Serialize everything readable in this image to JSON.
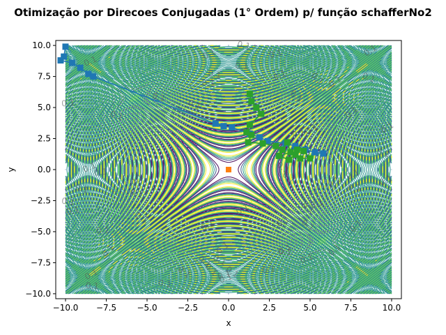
{
  "chart_data": {
    "type": "line",
    "title": "Otimização por Direcoes Conjugadas (1° Ordem) p/ função schafferNo2",
    "xlabel": "x",
    "ylabel": "y",
    "xlim": [
      -10.6,
      10.6
    ],
    "ylim": [
      -10.4,
      10.4
    ],
    "xticks": [
      -10.0,
      -7.5,
      -5.0,
      -2.5,
      0.0,
      2.5,
      5.0,
      7.5,
      10.0
    ],
    "yticks": [
      -10.0,
      -7.5,
      -5.0,
      -2.5,
      0.0,
      2.5,
      5.0,
      7.5,
      10.0
    ],
    "xtick_labels": [
      "−10.0",
      "−7.5",
      "−5.0",
      "−2.5",
      "0.0",
      "2.5",
      "5.0",
      "7.5",
      "10.0"
    ],
    "ytick_labels": [
      "−10.0",
      "−7.5",
      "−5.0",
      "−2.5",
      "0.0",
      "2.5",
      "5.0",
      "7.5",
      "10.0"
    ],
    "grid": false,
    "contour": {
      "function": "schafferNo2",
      "domain": [
        -10,
        10
      ],
      "level_label": "0.1",
      "colormap": [
        "#440154",
        "#3b528b",
        "#21918c",
        "#5ec962",
        "#fde725"
      ]
    },
    "series": [
      {
        "color": "#1f77b4",
        "marker": "square",
        "points": [
          [
            -10.0,
            9.9
          ],
          [
            -10.1,
            9.1
          ],
          [
            -10.3,
            8.8
          ],
          [
            -9.6,
            8.6
          ],
          [
            -9.1,
            8.2
          ],
          [
            -8.6,
            7.7
          ],
          [
            -8.3,
            7.5
          ],
          [
            -0.8,
            3.7
          ],
          [
            -0.3,
            3.5
          ],
          [
            0.2,
            3.4
          ],
          [
            1.3,
            2.9
          ],
          [
            1.9,
            2.6
          ],
          [
            2.4,
            2.3
          ],
          [
            3.5,
            2.1
          ],
          [
            4.1,
            1.9
          ],
          [
            4.7,
            1.6
          ],
          [
            5.3,
            1.4
          ],
          [
            5.8,
            1.3
          ]
        ]
      },
      {
        "color": "#2ca02c",
        "marker": "square",
        "points": [
          [
            1.3,
            6.1
          ],
          [
            1.4,
            5.5
          ],
          [
            1.7,
            5.0
          ],
          [
            2.0,
            4.5
          ],
          [
            1.3,
            3.6
          ],
          [
            1.1,
            3.0
          ],
          [
            1.4,
            2.8
          ],
          [
            1.2,
            2.2
          ],
          [
            2.1,
            2.1
          ],
          [
            2.9,
            1.9
          ],
          [
            3.3,
            1.6
          ],
          [
            3.6,
            2.2
          ],
          [
            3.8,
            1.4
          ],
          [
            3.1,
            1.1
          ],
          [
            3.7,
            0.8
          ],
          [
            4.1,
            1.2
          ],
          [
            4.4,
            0.9
          ],
          [
            5.0,
            0.9
          ],
          [
            4.6,
            1.5
          ],
          [
            4.2,
            1.6
          ]
        ]
      }
    ],
    "optimum": {
      "x": 0.0,
      "y": 0.0,
      "color": "#ff7f0e",
      "marker": "square"
    }
  }
}
